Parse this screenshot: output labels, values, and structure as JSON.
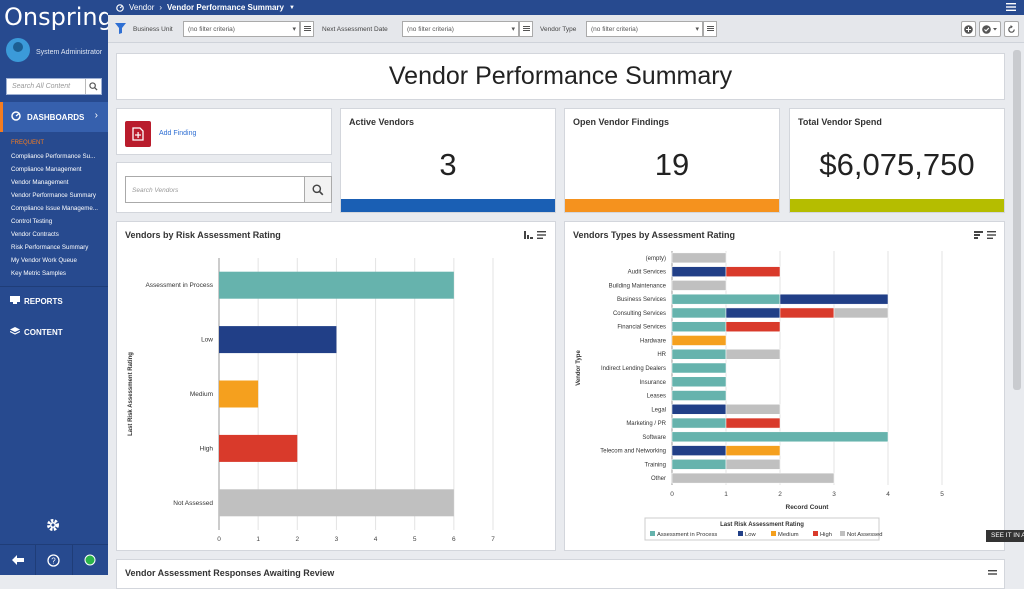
{
  "sidebar": {
    "logo": "Onspring",
    "user_name": "System Administrator",
    "search_placeholder": "Search All Content",
    "dashboards_label": "DASHBOARDS",
    "frequent_label": "FREQUENT",
    "frequent_items": [
      "Compliance Performance Su...",
      "Compliance Management",
      "Vendor Management",
      "Vendor Performance Summary",
      "Compliance Issue Manageme...",
      "Control Testing",
      "Vendor Contracts",
      "Risk Performance Summary",
      "My Vendor Work Queue",
      "Key Metric Samples"
    ],
    "reports_label": "REPORTS",
    "content_label": "CONTENT"
  },
  "topbar": {
    "crumb_parent": "Vendor",
    "crumb_current": "Vendor Performance Summary"
  },
  "filters": [
    {
      "label": "Business Unit",
      "value": "(no filter criteria)"
    },
    {
      "label": "Next Assessment Date",
      "value": "(no filter criteria)"
    },
    {
      "label": "Vendor Type",
      "value": "(no filter criteria)"
    }
  ],
  "page_title": "Vendor Performance Summary",
  "add_finding": "Add Finding",
  "vendor_search_placeholder": "Search Vendors",
  "kpis": [
    {
      "title": "Active Vendors",
      "value": "3",
      "color": "#1a5fb4"
    },
    {
      "title": "Open Vendor Findings",
      "value": "19",
      "color": "#f5921e"
    },
    {
      "title": "Total Vendor Spend",
      "value": "$6,075,750",
      "color": "#b5bd00"
    }
  ],
  "bottom_title": "Vendor Assessment Responses Awaiting Review",
  "see_it": "SEE IT IN A",
  "colors": {
    "teal": "#66b3ad",
    "navy": "#213f87",
    "orange": "#f5a01e",
    "red": "#d93a2b",
    "gray": "#c0c0c0"
  },
  "chart_data": [
    {
      "type": "bar",
      "orientation": "horizontal",
      "title": "Vendors by Risk Assessment Rating",
      "xlabel": "Record Count",
      "ylabel": "Last Risk Assessment Rating",
      "xlim": [
        0,
        7
      ],
      "xticks": [
        0,
        1,
        2,
        3,
        4,
        5,
        6,
        7
      ],
      "categories": [
        "Assessment in Process",
        "Low",
        "Medium",
        "High",
        "Not Assessed"
      ],
      "values": [
        6,
        3,
        1,
        2,
        6
      ],
      "colors": [
        "#66b3ad",
        "#213f87",
        "#f5a01e",
        "#d93a2b",
        "#c0c0c0"
      ]
    },
    {
      "type": "bar",
      "orientation": "horizontal",
      "stacked": true,
      "title": "Vendors Types by Assessment Rating",
      "xlabel": "Record Count",
      "ylabel": "Vendor Type",
      "xlim": [
        0,
        5
      ],
      "xticks": [
        0,
        1,
        2,
        3,
        4,
        5
      ],
      "legend_title": "Last Risk Assessment Rating",
      "legend_position": "bottom",
      "categories": [
        "(empty)",
        "Audit Services",
        "Building Maintenance",
        "Business Services",
        "Consulting Services",
        "Financial Services",
        "Hardware",
        "HR",
        "Indirect Lending Dealers",
        "Insurance",
        "Leases",
        "Legal",
        "Marketing / PR",
        "Software",
        "Telecom and Networking",
        "Training",
        "Other"
      ],
      "series": [
        {
          "name": "Assessment in Process",
          "color": "#66b3ad",
          "values": [
            0,
            0,
            0,
            2,
            1,
            1,
            0,
            1,
            1,
            1,
            1,
            0,
            1,
            4,
            0,
            1,
            0
          ]
        },
        {
          "name": "Low",
          "color": "#213f87",
          "values": [
            0,
            1,
            0,
            2,
            1,
            0,
            0,
            0,
            0,
            0,
            0,
            1,
            0,
            0,
            1,
            0,
            0
          ]
        },
        {
          "name": "Medium",
          "color": "#f5a01e",
          "values": [
            0,
            0,
            0,
            0,
            0,
            0,
            1,
            0,
            0,
            0,
            0,
            0,
            0,
            0,
            1,
            0,
            0
          ]
        },
        {
          "name": "High",
          "color": "#d93a2b",
          "values": [
            0,
            1,
            0,
            0,
            1,
            1,
            0,
            0,
            0,
            0,
            0,
            0,
            1,
            0,
            0,
            0,
            0
          ]
        },
        {
          "name": "Not Assessed",
          "color": "#c0c0c0",
          "values": [
            1,
            0,
            1,
            0,
            1,
            0,
            0,
            1,
            0,
            0,
            0,
            1,
            0,
            0,
            0,
            1,
            3
          ]
        }
      ]
    }
  ]
}
